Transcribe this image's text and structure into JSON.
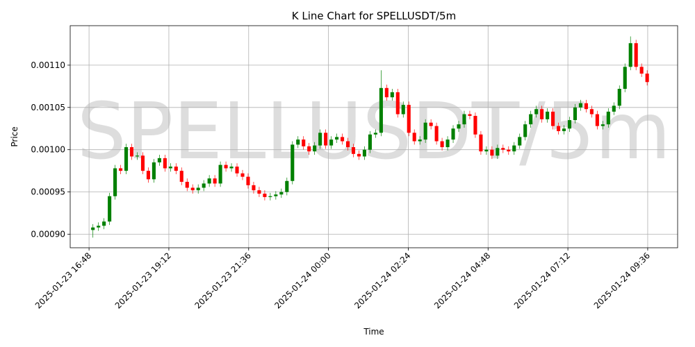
{
  "chart_data": {
    "type": "candlestick",
    "title": "K Line Chart for SPELLUSDT/5m",
    "watermark": "SPELLUSDT/5m",
    "x_label": "Time",
    "y_label": "Price",
    "grid": true,
    "up_color": "#008000",
    "down_color": "#ff0000",
    "xlim": [
      "2025-01-23 16:14",
      "2025-01-24 10:30"
    ],
    "xticks": [
      "2025-01-23 16:48",
      "2025-01-23 19:12",
      "2025-01-23 21:36",
      "2025-01-24 00:00",
      "2025-01-24 02:24",
      "2025-01-24 04:48",
      "2025-01-24 07:12",
      "2025-01-24 09:36"
    ],
    "ylim": [
      0.000884,
      0.0011467
    ],
    "yticks": [
      {
        "value": 0.0009,
        "label": "0.00090"
      },
      {
        "value": 0.00095,
        "label": "0.00095"
      },
      {
        "value": 0.001,
        "label": "0.00100"
      },
      {
        "value": 0.00105,
        "label": "0.00105"
      },
      {
        "value": 0.0011,
        "label": "0.00110"
      }
    ],
    "x": [
      "2025-01-23 16:55",
      "2025-01-23 17:05",
      "2025-01-23 17:15",
      "2025-01-23 17:25",
      "2025-01-23 17:35",
      "2025-01-23 17:45",
      "2025-01-23 17:55",
      "2025-01-23 18:05",
      "2025-01-23 18:15",
      "2025-01-23 18:25",
      "2025-01-23 18:35",
      "2025-01-23 18:45",
      "2025-01-23 18:55",
      "2025-01-23 19:05",
      "2025-01-23 19:15",
      "2025-01-23 19:25",
      "2025-01-23 19:35",
      "2025-01-23 19:45",
      "2025-01-23 19:55",
      "2025-01-23 20:05",
      "2025-01-23 20:15",
      "2025-01-23 20:25",
      "2025-01-23 20:35",
      "2025-01-23 20:45",
      "2025-01-23 20:55",
      "2025-01-23 21:05",
      "2025-01-23 21:15",
      "2025-01-23 21:25",
      "2025-01-23 21:35",
      "2025-01-23 21:45",
      "2025-01-23 21:55",
      "2025-01-23 22:05",
      "2025-01-23 22:15",
      "2025-01-23 22:25",
      "2025-01-23 22:35",
      "2025-01-23 22:45",
      "2025-01-23 22:55",
      "2025-01-23 23:05",
      "2025-01-23 23:15",
      "2025-01-23 23:25",
      "2025-01-23 23:35",
      "2025-01-23 23:45",
      "2025-01-23 23:55",
      "2025-01-24 00:05",
      "2025-01-24 00:15",
      "2025-01-24 00:25",
      "2025-01-24 00:35",
      "2025-01-24 00:45",
      "2025-01-24 00:55",
      "2025-01-24 01:05",
      "2025-01-24 01:15",
      "2025-01-24 01:25",
      "2025-01-24 01:35",
      "2025-01-24 01:45",
      "2025-01-24 01:55",
      "2025-01-24 02:05",
      "2025-01-24 02:15",
      "2025-01-24 02:25",
      "2025-01-24 02:35",
      "2025-01-24 02:45",
      "2025-01-24 02:55",
      "2025-01-24 03:05",
      "2025-01-24 03:15",
      "2025-01-24 03:25",
      "2025-01-24 03:35",
      "2025-01-24 03:45",
      "2025-01-24 03:55",
      "2025-01-24 04:05",
      "2025-01-24 04:15",
      "2025-01-24 04:25",
      "2025-01-24 04:35",
      "2025-01-24 04:45",
      "2025-01-24 04:55",
      "2025-01-24 05:05",
      "2025-01-24 05:15",
      "2025-01-24 05:25",
      "2025-01-24 05:35",
      "2025-01-24 05:45",
      "2025-01-24 05:55",
      "2025-01-24 06:05",
      "2025-01-24 06:15",
      "2025-01-24 06:25",
      "2025-01-24 06:35",
      "2025-01-24 06:45",
      "2025-01-24 06:55",
      "2025-01-24 07:05",
      "2025-01-24 07:15",
      "2025-01-24 07:25",
      "2025-01-24 07:35",
      "2025-01-24 07:45",
      "2025-01-24 07:55",
      "2025-01-24 08:05",
      "2025-01-24 08:15",
      "2025-01-24 08:25",
      "2025-01-24 08:35",
      "2025-01-24 08:45",
      "2025-01-24 08:55",
      "2025-01-24 09:05",
      "2025-01-24 09:15",
      "2025-01-24 09:25",
      "2025-01-24 09:35"
    ],
    "open": [
      0.000905,
      0.000908,
      0.00091,
      0.000915,
      0.000945,
      0.000978,
      0.000975,
      0.001003,
      0.000992,
      0.000993,
      0.000975,
      0.000965,
      0.000985,
      0.00099,
      0.000978,
      0.00098,
      0.000975,
      0.000962,
      0.000955,
      0.000952,
      0.000955,
      0.00096,
      0.000966,
      0.00096,
      0.000982,
      0.000978,
      0.00098,
      0.000972,
      0.000968,
      0.000958,
      0.000952,
      0.000948,
      0.000944,
      0.000945,
      0.000947,
      0.00095,
      0.000963,
      0.001006,
      0.001012,
      0.001004,
      0.000998,
      0.001005,
      0.00102,
      0.001005,
      0.001012,
      0.001015,
      0.00101,
      0.001003,
      0.000995,
      0.000992,
      0.001,
      0.001018,
      0.00102,
      0.001073,
      0.001062,
      0.001068,
      0.001042,
      0.001053,
      0.00102,
      0.00101,
      0.001012,
      0.001032,
      0.001028,
      0.00101,
      0.001003,
      0.001012,
      0.001025,
      0.00103,
      0.001042,
      0.00104,
      0.001018,
      0.000998,
      0.001,
      0.000993,
      0.001002,
      0.001,
      0.000998,
      0.001005,
      0.001015,
      0.00103,
      0.001042,
      0.001048,
      0.001036,
      0.001045,
      0.001028,
      0.001022,
      0.001025,
      0.001035,
      0.00105,
      0.001055,
      0.001048,
      0.001042,
      0.001028,
      0.00103,
      0.001045,
      0.001052,
      0.001072,
      0.001098,
      0.001126,
      0.001098,
      0.00109
    ],
    "high": [
      0.000912,
      0.000914,
      0.000919,
      0.000949,
      0.000982,
      0.000982,
      0.001007,
      0.001007,
      0.000997,
      0.000997,
      0.000979,
      0.000989,
      0.000994,
      0.000994,
      0.000984,
      0.000984,
      0.000979,
      0.000966,
      0.000959,
      0.000959,
      0.000964,
      0.00097,
      0.00097,
      0.000986,
      0.000986,
      0.000984,
      0.000984,
      0.000976,
      0.000972,
      0.000962,
      0.000956,
      0.000952,
      0.000949,
      0.000951,
      0.000954,
      0.000967,
      0.00101,
      0.001016,
      0.001016,
      0.001008,
      0.001009,
      0.001024,
      0.001024,
      0.001016,
      0.001019,
      0.001019,
      0.001014,
      0.001007,
      0.000999,
      0.001004,
      0.001022,
      0.001024,
      0.001094,
      0.001077,
      0.001072,
      0.001072,
      0.001057,
      0.001057,
      0.001024,
      0.001016,
      0.001036,
      0.001036,
      0.001032,
      0.001014,
      0.001016,
      0.001029,
      0.001034,
      0.001046,
      0.001046,
      0.001044,
      0.001022,
      0.001004,
      0.001004,
      0.001006,
      0.001006,
      0.001004,
      0.001009,
      0.001019,
      0.001034,
      0.001046,
      0.001052,
      0.001052,
      0.001049,
      0.001049,
      0.001032,
      0.001029,
      0.001039,
      0.001054,
      0.001059,
      0.001059,
      0.001052,
      0.001046,
      0.001034,
      0.001049,
      0.001056,
      0.001076,
      0.001102,
      0.001134,
      0.00113,
      0.001102,
      0.001094
    ],
    "low": [
      0.000896,
      0.000904,
      0.000906,
      0.000911,
      0.000941,
      0.000971,
      0.000971,
      0.000988,
      0.000988,
      0.000971,
      0.000961,
      0.000961,
      0.000981,
      0.000974,
      0.000974,
      0.000971,
      0.000958,
      0.000951,
      0.000948,
      0.000948,
      0.000951,
      0.000956,
      0.000956,
      0.000956,
      0.000974,
      0.000974,
      0.000968,
      0.000964,
      0.000954,
      0.000948,
      0.000944,
      0.00094,
      0.00094,
      0.000941,
      0.000943,
      0.000946,
      0.000959,
      0.001002,
      0.001,
      0.000994,
      0.000994,
      0.001001,
      0.001001,
      0.001001,
      0.001008,
      0.001006,
      0.000999,
      0.000991,
      0.000988,
      0.000988,
      0.000996,
      0.001014,
      0.001016,
      0.001058,
      0.001058,
      0.001038,
      0.001038,
      0.001016,
      0.001006,
      0.001006,
      0.001008,
      0.001024,
      0.001006,
      0.000999,
      0.000999,
      0.001008,
      0.001021,
      0.001026,
      0.001036,
      0.001014,
      0.000994,
      0.000994,
      0.000989,
      0.000989,
      0.000996,
      0.000994,
      0.000994,
      0.001001,
      0.001011,
      0.001026,
      0.001038,
      0.001032,
      0.001032,
      0.001024,
      0.001018,
      0.001018,
      0.001021,
      0.001031,
      0.001046,
      0.001044,
      0.001038,
      0.001024,
      0.001024,
      0.001026,
      0.001041,
      0.001048,
      0.001068,
      0.001094,
      0.001094,
      0.001086,
      0.001076
    ],
    "close": [
      0.000908,
      0.00091,
      0.000915,
      0.000945,
      0.000978,
      0.000975,
      0.001003,
      0.000992,
      0.000993,
      0.000975,
      0.000965,
      0.000985,
      0.00099,
      0.000978,
      0.00098,
      0.000975,
      0.000962,
      0.000955,
      0.000952,
      0.000955,
      0.00096,
      0.000966,
      0.00096,
      0.000982,
      0.000978,
      0.00098,
      0.000972,
      0.000968,
      0.000958,
      0.000952,
      0.000948,
      0.000944,
      0.000945,
      0.000947,
      0.00095,
      0.000963,
      0.001006,
      0.001012,
      0.001004,
      0.000998,
      0.001005,
      0.00102,
      0.001005,
      0.001012,
      0.001015,
      0.00101,
      0.001003,
      0.000995,
      0.000992,
      0.001,
      0.001018,
      0.00102,
      0.001073,
      0.001062,
      0.001068,
      0.001042,
      0.001053,
      0.00102,
      0.00101,
      0.001012,
      0.001032,
      0.001028,
      0.00101,
      0.001003,
      0.001012,
      0.001025,
      0.00103,
      0.001042,
      0.00104,
      0.001018,
      0.000998,
      0.001,
      0.000993,
      0.001002,
      0.001,
      0.000998,
      0.001005,
      0.001015,
      0.00103,
      0.001042,
      0.001048,
      0.001036,
      0.001045,
      0.001028,
      0.001022,
      0.001025,
      0.001035,
      0.00105,
      0.001055,
      0.001048,
      0.001042,
      0.001028,
      0.00103,
      0.001045,
      0.001052,
      0.001072,
      0.001098,
      0.001126,
      0.001098,
      0.00109,
      0.00108
    ]
  }
}
